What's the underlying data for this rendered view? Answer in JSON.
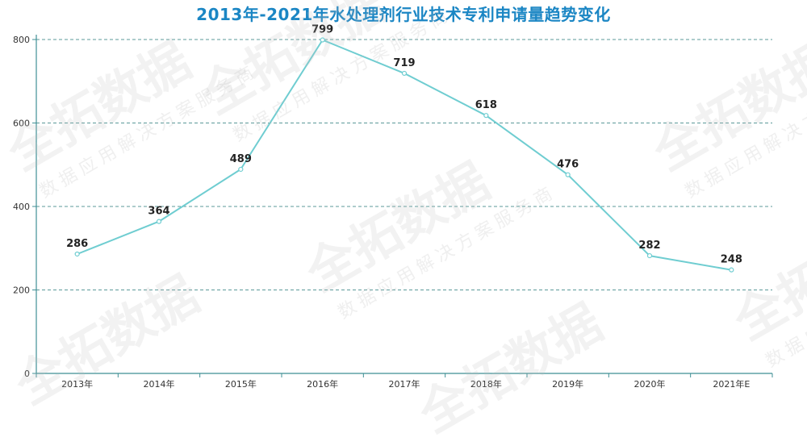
{
  "title": "2013年-2021年水处理剂行业技术专利申请量趋势变化",
  "colors": {
    "title": "#1b86c4",
    "line": "#6fcdd1",
    "grid": "#4a8f8f",
    "axis": "#3f8f95"
  },
  "watermark": {
    "brand": "全拓数据",
    "tagline": "数据应用解决方案服务商"
  },
  "chart_data": {
    "type": "line",
    "categories": [
      "2013年",
      "2014年",
      "2015年",
      "2016年",
      "2017年",
      "2018年",
      "2019年",
      "2020年",
      "2021年E"
    ],
    "series": [
      {
        "values": [
          286,
          364,
          489,
          799,
          719,
          618,
          476,
          282,
          248
        ]
      }
    ],
    "y_ticks": [
      0,
      200,
      400,
      600,
      800
    ],
    "ylim": [
      0,
      800
    ],
    "grid": "horizontal-dashed",
    "data_labels": true,
    "xlabel": "",
    "ylabel": ""
  }
}
